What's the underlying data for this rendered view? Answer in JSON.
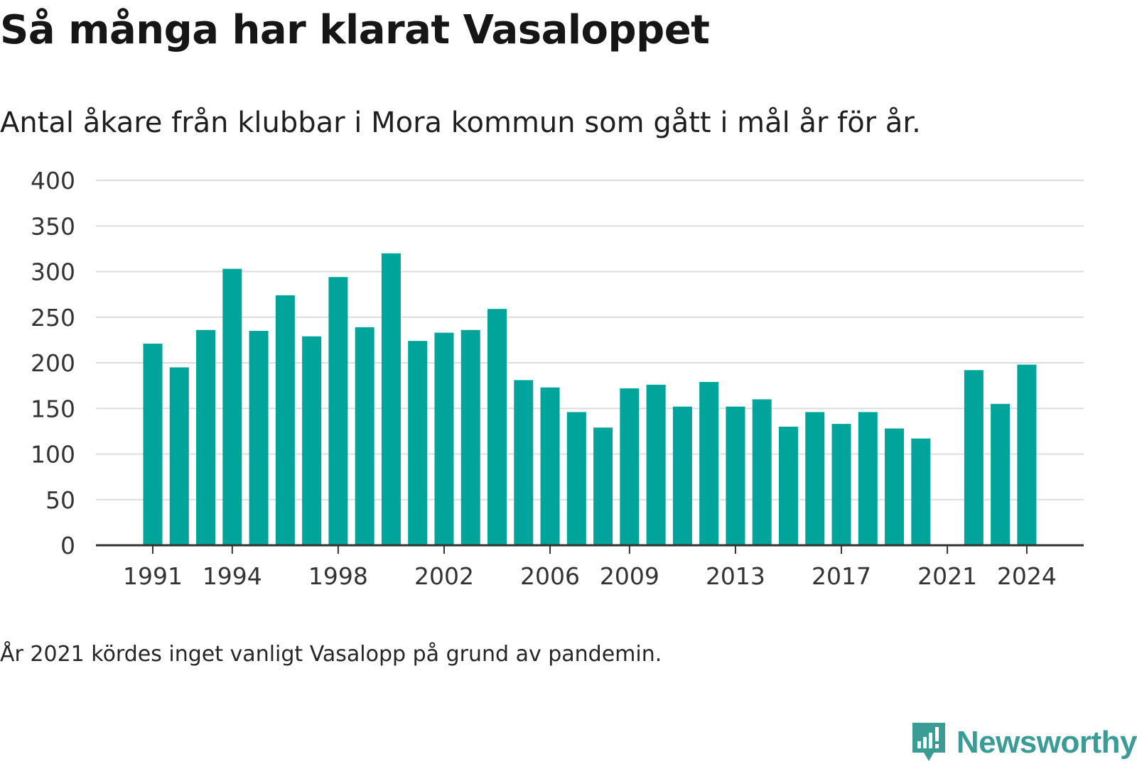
{
  "title": "Så många har klarat Vasaloppet",
  "subtitle": "Antal åkare från klubbar i Mora kommun som gått i mål år för år.",
  "footnote": "År 2021 kördes inget vanligt Vasalopp på grund av pandemin.",
  "brand": {
    "name": "Newsworthy",
    "icon": "newsworthy-logo-icon",
    "color": "#3a9c95"
  },
  "colors": {
    "bar": "#00a49a",
    "grid": "#dddddd",
    "axis": "#333333",
    "text": "#333333"
  },
  "chart_data": {
    "type": "bar",
    "title": "Så många har klarat Vasaloppet",
    "subtitle": "Antal åkare från klubbar i Mora kommun som gått i mål år för år.",
    "xlabel": "",
    "ylabel": "",
    "ylim": [
      0,
      400
    ],
    "yticks": [
      0,
      50,
      100,
      150,
      200,
      250,
      300,
      350,
      400
    ],
    "xticks": [
      1991,
      1994,
      1998,
      2002,
      2006,
      2009,
      2013,
      2017,
      2021,
      2024
    ],
    "grid": true,
    "categories": [
      1991,
      1992,
      1993,
      1994,
      1995,
      1996,
      1997,
      1998,
      1999,
      2000,
      2001,
      2002,
      2003,
      2004,
      2005,
      2006,
      2007,
      2008,
      2009,
      2010,
      2011,
      2012,
      2013,
      2014,
      2015,
      2016,
      2017,
      2018,
      2019,
      2020,
      2021,
      2022,
      2023,
      2024
    ],
    "values": [
      221,
      195,
      236,
      303,
      235,
      274,
      229,
      294,
      239,
      320,
      224,
      233,
      236,
      259,
      181,
      173,
      146,
      129,
      172,
      176,
      152,
      179,
      152,
      160,
      130,
      146,
      133,
      146,
      128,
      117,
      null,
      192,
      155,
      198
    ]
  }
}
